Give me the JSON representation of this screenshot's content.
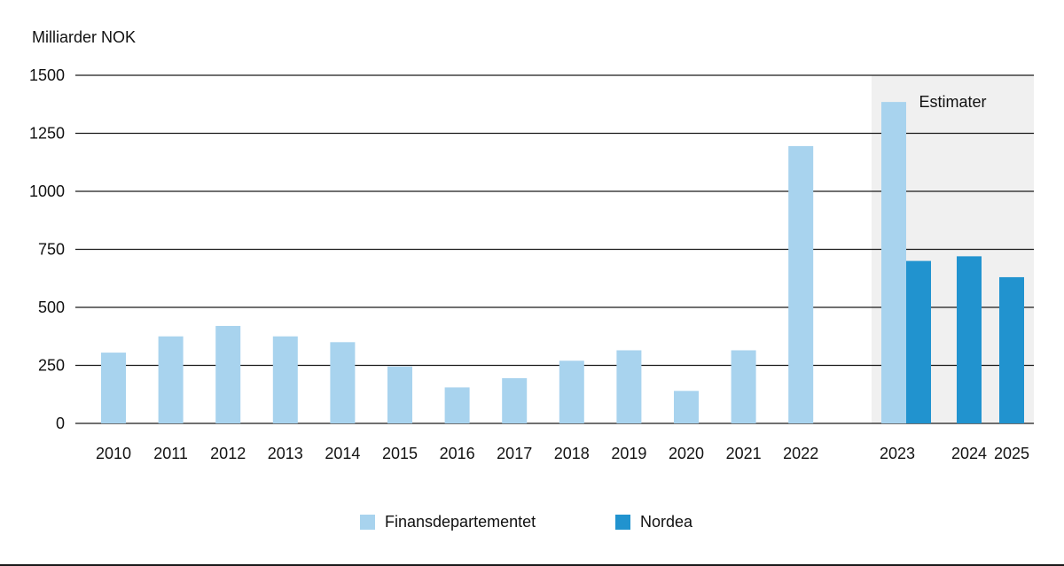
{
  "style": {
    "finans_color": "#a8d3ee",
    "nordea_color": "#2193cf",
    "estimate_region_color": "#f0f0f0",
    "gridline_color": "#1a1a1a",
    "text_color": "#111111"
  },
  "chart_data": {
    "type": "bar",
    "title": "Milliarder NOK",
    "unit_label": "Milliarder NOK",
    "xlabel": "",
    "ylabel": "Milliarder NOK",
    "ylim": [
      0,
      1500
    ],
    "yticks": [
      0,
      250,
      500,
      750,
      1000,
      1250,
      1500
    ],
    "grid": true,
    "legend_position": "bottom",
    "categories": [
      "2010",
      "2011",
      "2012",
      "2013",
      "2014",
      "2015",
      "2016",
      "2017",
      "2018",
      "2019",
      "2020",
      "2021",
      "2022",
      "2023",
      "2024",
      "2025"
    ],
    "series": [
      {
        "name": "Finansdepartementet",
        "color": "#a8d3ee",
        "values": [
          305,
          375,
          420,
          375,
          350,
          245,
          155,
          195,
          270,
          315,
          140,
          315,
          1195,
          1385,
          null,
          null
        ]
      },
      {
        "name": "Nordea",
        "color": "#2193cf",
        "values": [
          null,
          null,
          null,
          null,
          null,
          null,
          null,
          null,
          null,
          null,
          null,
          null,
          null,
          700,
          720,
          630
        ]
      }
    ],
    "annotation": {
      "label": "Estimater",
      "categories": [
        "2023",
        "2024",
        "2025"
      ]
    }
  }
}
